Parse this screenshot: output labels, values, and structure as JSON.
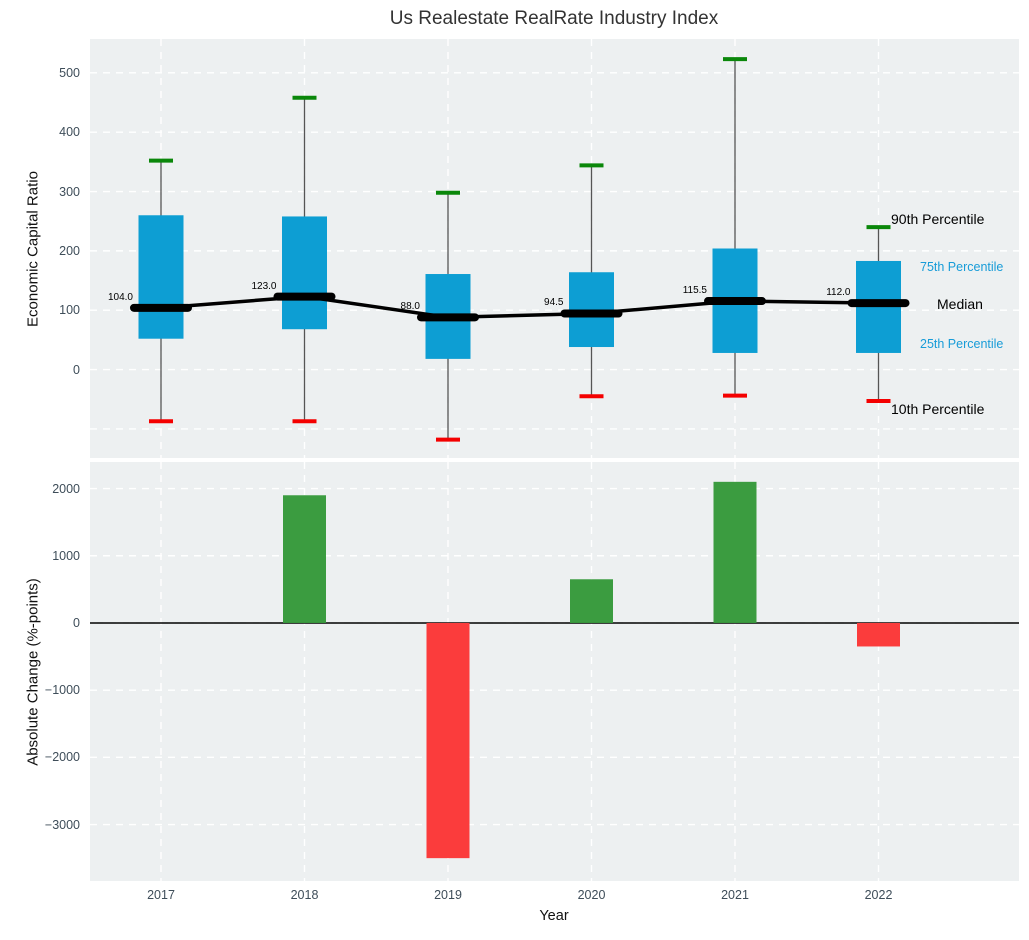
{
  "title": "Us Realestate RealRate Industry Index",
  "colors": {
    "plot_bg": "#edf0f1",
    "grid": "#ffffff",
    "box_blue": "#0d9ed3",
    "whisker_gray": "#555555",
    "cap_green": "#0a870a",
    "cap_red": "#f40000",
    "median_black": "#000000",
    "bar_green": "#3b9c40",
    "bar_red": "#fb3c3c",
    "zero_line": "#000000",
    "tick_text": "#3e4d59",
    "annotation_blue": "#189cd8"
  },
  "chart_data": [
    {
      "type": "boxplot",
      "title": "Us Realestate RealRate Industry Index",
      "ylabel": "Economic Capital Ratio",
      "categories": [
        "2017",
        "2018",
        "2019",
        "2020",
        "2021",
        "2022"
      ],
      "ylim": [
        -149,
        557
      ],
      "yticks": [
        0,
        100,
        200,
        300,
        400,
        500
      ],
      "ytick_labels": [
        "0",
        "100",
        "200",
        "300",
        "400",
        "500"
      ],
      "grid_yticks": [
        -100,
        0,
        100,
        200,
        300,
        400,
        500
      ],
      "grid": "on",
      "series": [
        {
          "name": "10th Percentile",
          "values": [
            -87,
            -87,
            -118,
            -45,
            -44,
            -53
          ]
        },
        {
          "name": "25th Percentile",
          "values": [
            52,
            68,
            18,
            38,
            28,
            28
          ]
        },
        {
          "name": "Median",
          "values": [
            104.0,
            123.0,
            88.0,
            94.5,
            115.5,
            112.0
          ]
        },
        {
          "name": "75th Percentile",
          "values": [
            260,
            258,
            161,
            164,
            204,
            183
          ]
        },
        {
          "name": "90th Percentile",
          "values": [
            352,
            458,
            298,
            344,
            523,
            240
          ]
        }
      ],
      "median_labels": [
        "104.0",
        "123.0",
        "88.0",
        "94.5",
        "115.5",
        "112.0"
      ],
      "annotations": [
        {
          "label": "90th Percentile",
          "color": "#000000",
          "size": "large"
        },
        {
          "label": "75th Percentile",
          "color": "#189cd8",
          "size": "small"
        },
        {
          "label": "Median",
          "color": "#000000",
          "size": "large"
        },
        {
          "label": "25th Percentile",
          "color": "#189cd8",
          "size": "small"
        },
        {
          "label": "10th Percentile",
          "color": "#000000",
          "size": "large"
        }
      ],
      "legend_position": "right"
    },
    {
      "type": "bar",
      "xlabel": "Year",
      "ylabel": "Absolute Change (%-points)",
      "categories": [
        "2017",
        "2018",
        "2019",
        "2020",
        "2021",
        "2022"
      ],
      "values": [
        0,
        1900,
        -3500,
        650,
        2100,
        -350
      ],
      "ylim": [
        -3840,
        2395
      ],
      "yticks": [
        2000,
        1000,
        0,
        -1000,
        -2000,
        -3000
      ],
      "ytick_labels": [
        "2000",
        "1000",
        "0",
        "−1000",
        "−2000",
        "−3000"
      ],
      "grid": "on",
      "zero_line": true
    }
  ]
}
